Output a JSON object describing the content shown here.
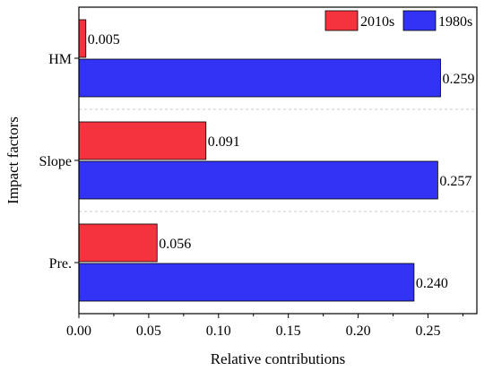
{
  "chart_data": {
    "type": "bar",
    "orientation": "horizontal",
    "categories": [
      "HM",
      "Slope",
      "Pre."
    ],
    "series": [
      {
        "name": "2010s",
        "color": "#f5333f",
        "values": [
          0.005,
          0.091,
          0.056
        ],
        "labels": [
          "0.005",
          "0.091",
          "0.056"
        ]
      },
      {
        "name": "1980s",
        "color": "#3333f5",
        "values": [
          0.259,
          0.257,
          0.24
        ],
        "labels": [
          "0.259",
          "0.257",
          "0.240"
        ]
      }
    ],
    "xlabel": "Relative contributions",
    "ylabel": "Impact factors",
    "xlim": [
      0,
      0.285
    ],
    "xticks": [
      0.0,
      0.05,
      0.1,
      0.15,
      0.2,
      0.25
    ],
    "xtick_labels": [
      "0.00",
      "0.05",
      "0.10",
      "0.15",
      "0.20",
      "0.25"
    ],
    "grid": "dashed horizontal separators between categories",
    "legend": "top-right, horizontal"
  }
}
